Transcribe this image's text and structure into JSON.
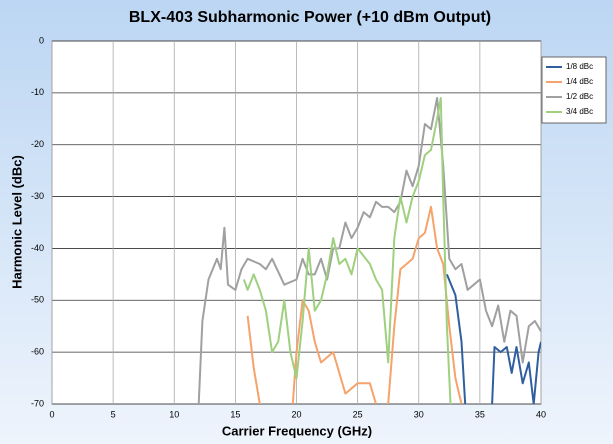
{
  "chart_data": {
    "type": "line",
    "title": "BLX-403 Subharmonic Power (+10 dBm Output)",
    "x_label": "Carrier Frequency (GHz)",
    "y_label": "Harmonic Level (dBc)",
    "xlim": [
      0,
      40
    ],
    "xticks": [
      0,
      5,
      10,
      15,
      20,
      25,
      30,
      35,
      40
    ],
    "ylim": [
      -70,
      0
    ],
    "yticks": [
      0,
      -10,
      -20,
      -30,
      -40,
      -50,
      -60,
      -70
    ],
    "grid": true,
    "legend": "upper right",
    "series": [
      {
        "name": "1/8 dBc",
        "color": "#2f5f9f",
        "x": [
          32.3,
          33,
          33.5,
          33.8,
          35,
          36,
          36.2,
          36.7,
          37.2,
          37.6,
          38,
          38.5,
          39,
          39.4,
          39.8,
          40
        ],
        "values": [
          -45,
          -49,
          -58,
          -70,
          null,
          -70,
          -59,
          -60,
          -59,
          -64,
          -59,
          -66,
          -62,
          -70,
          -60,
          -58
        ]
      },
      {
        "name": "1/4 dBc",
        "color": "#f5a36b",
        "x": [
          16,
          16.5,
          17,
          18,
          19.7,
          20,
          20.5,
          21,
          21.5,
          22,
          23,
          23.5,
          24,
          25,
          26,
          26.5,
          27,
          27.5,
          28,
          28.5,
          29,
          29.5,
          30,
          30.5,
          31,
          31.5,
          32,
          32.5,
          33,
          33.5
        ],
        "values": [
          -53,
          -63,
          -70,
          null,
          -70,
          -60,
          -50,
          -52,
          -58,
          -62,
          -60,
          -64,
          -68,
          -66,
          -66,
          -70,
          null,
          -70,
          -55,
          -44,
          -43,
          -42,
          -38,
          -37,
          -32,
          -40,
          -43,
          -55,
          -65,
          -70
        ]
      },
      {
        "name": "1/2 dBc",
        "color": "#a0a0a0",
        "x": [
          12,
          12.3,
          12.8,
          13.5,
          13.8,
          14.1,
          14.4,
          15,
          15.5,
          16,
          17,
          17.5,
          18,
          19,
          20,
          20.5,
          21,
          21.5,
          22,
          22.5,
          23,
          23.5,
          24,
          24.5,
          25,
          25.5,
          26,
          26.5,
          27,
          27.5,
          28,
          28.5,
          29,
          29.5,
          30,
          30.5,
          31,
          31.5,
          32,
          32.5,
          33,
          33.5,
          34,
          34.5,
          35,
          35.5,
          36,
          36.5,
          37,
          37.5,
          38,
          38.5,
          39,
          39.5,
          40
        ],
        "values": [
          -70,
          -54,
          -46,
          -42,
          -44,
          -36,
          -47,
          -48,
          -44,
          -42,
          -43,
          -44,
          -42,
          -47,
          -46,
          -42,
          -45,
          -45,
          -42,
          -46,
          -40,
          -40,
          -35,
          -38,
          -36,
          -33,
          -34,
          -31,
          -32,
          -32,
          -33,
          -31,
          -25,
          -28,
          -24,
          -16,
          -17,
          -11,
          -24,
          -42,
          -44,
          -43,
          -48,
          -47,
          -46,
          -52,
          -55,
          -51,
          -58,
          -52,
          -53,
          -62,
          -55,
          -54,
          -56
        ]
      },
      {
        "name": "3/4 dBc",
        "color": "#9fd07f",
        "x": [
          15.7,
          16,
          16.5,
          17,
          17.5,
          18,
          18.5,
          19,
          19.5,
          20,
          20.5,
          21,
          21.5,
          22,
          22.5,
          23,
          23.5,
          24,
          24.5,
          25,
          26,
          26.5,
          27,
          27.5,
          28,
          28.5,
          29,
          29.5,
          30,
          30.5,
          31,
          31.5,
          31.8,
          32,
          32.3,
          32.6
        ],
        "values": [
          -46,
          -48,
          -45,
          -48,
          -52,
          -60,
          -58,
          -50,
          -60,
          -65,
          -54,
          -40,
          -52,
          -50,
          -45,
          -38,
          -43,
          -42,
          -45,
          -40,
          -43,
          -46,
          -48,
          -62,
          -38,
          -30,
          -35,
          -30,
          -27,
          -22,
          -21,
          -15,
          -11,
          -30,
          -55,
          -70
        ]
      }
    ]
  }
}
